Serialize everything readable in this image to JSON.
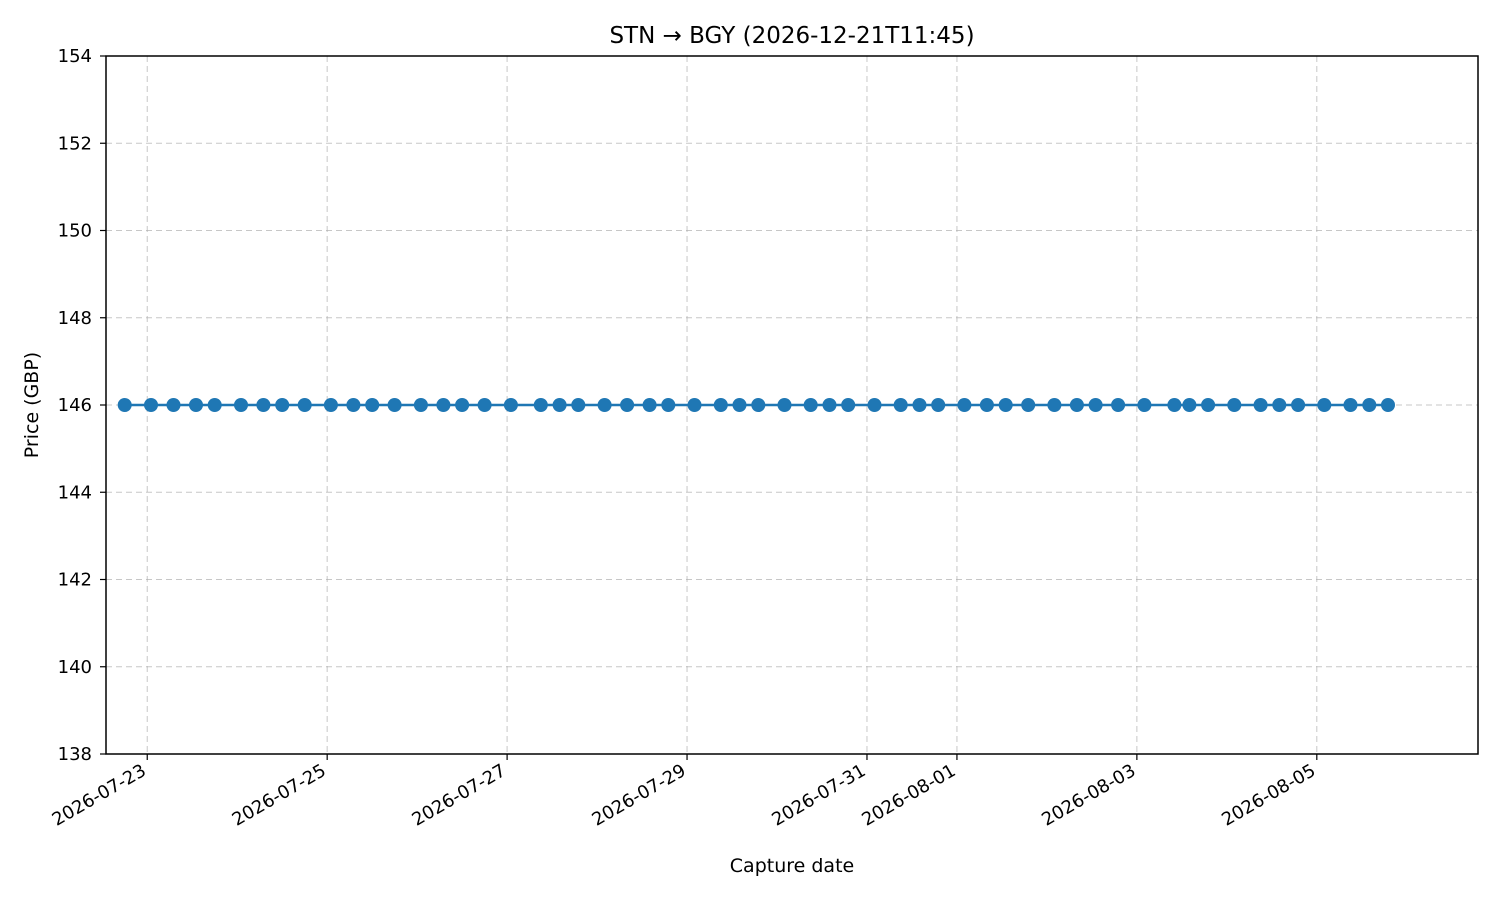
{
  "chart_data": {
    "type": "line",
    "title": "STN → BGY (2026-12-21T11:45)",
    "xlabel": "Capture date",
    "ylabel": "Price (GBP)",
    "ylim": [
      138,
      154
    ],
    "xlim": [
      "2026-07-22T13:00",
      "2026-08-06T19:00"
    ],
    "y_ticks": [
      138,
      140,
      142,
      144,
      146,
      148,
      150,
      152,
      154
    ],
    "x_ticks": [
      "2026-07-23",
      "2026-07-25",
      "2026-07-27",
      "2026-07-29",
      "2026-07-31",
      "2026-08-01",
      "2026-08-03",
      "2026-08-05"
    ],
    "grid": true,
    "series_color": "#1f77b4",
    "series": [
      {
        "x": [
          "2026-07-22T18:00",
          "2026-07-23T01:00",
          "2026-07-23T07:00",
          "2026-07-23T13:00",
          "2026-07-23T18:00",
          "2026-07-24T01:00",
          "2026-07-24T07:00",
          "2026-07-24T12:00",
          "2026-07-24T18:00",
          "2026-07-25T01:00",
          "2026-07-25T07:00",
          "2026-07-25T12:00",
          "2026-07-25T18:00",
          "2026-07-26T01:00",
          "2026-07-26T07:00",
          "2026-07-26T12:00",
          "2026-07-26T18:00",
          "2026-07-27T01:00",
          "2026-07-27T09:00",
          "2026-07-27T14:00",
          "2026-07-27T19:00",
          "2026-07-28T02:00",
          "2026-07-28T08:00",
          "2026-07-28T14:00",
          "2026-07-28T19:00",
          "2026-07-29T02:00",
          "2026-07-29T09:00",
          "2026-07-29T14:00",
          "2026-07-29T19:00",
          "2026-07-30T02:00",
          "2026-07-30T09:00",
          "2026-07-30T14:00",
          "2026-07-30T19:00",
          "2026-07-31T02:00",
          "2026-07-31T09:00",
          "2026-07-31T14:00",
          "2026-07-31T19:00",
          "2026-08-01T02:00",
          "2026-08-01T08:00",
          "2026-08-01T13:00",
          "2026-08-01T19:00",
          "2026-08-02T02:00",
          "2026-08-02T08:00",
          "2026-08-02T13:00",
          "2026-08-02T19:00",
          "2026-08-03T02:00",
          "2026-08-03T10:00",
          "2026-08-03T14:00",
          "2026-08-03T19:00",
          "2026-08-04T02:00",
          "2026-08-04T09:00",
          "2026-08-04T14:00",
          "2026-08-04T19:00",
          "2026-08-05T02:00",
          "2026-08-05T09:00",
          "2026-08-05T14:00",
          "2026-08-05T19:00"
        ],
        "y": [
          146,
          146,
          146,
          146,
          146,
          146,
          146,
          146,
          146,
          146,
          146,
          146,
          146,
          146,
          146,
          146,
          146,
          146,
          146,
          146,
          146,
          146,
          146,
          146,
          146,
          146,
          146,
          146,
          146,
          146,
          146,
          146,
          146,
          146,
          146,
          146,
          146,
          146,
          146,
          146,
          146,
          146,
          146,
          146,
          146,
          146,
          146,
          146,
          146,
          146,
          146,
          146,
          146,
          146,
          146,
          146,
          146
        ]
      }
    ]
  }
}
